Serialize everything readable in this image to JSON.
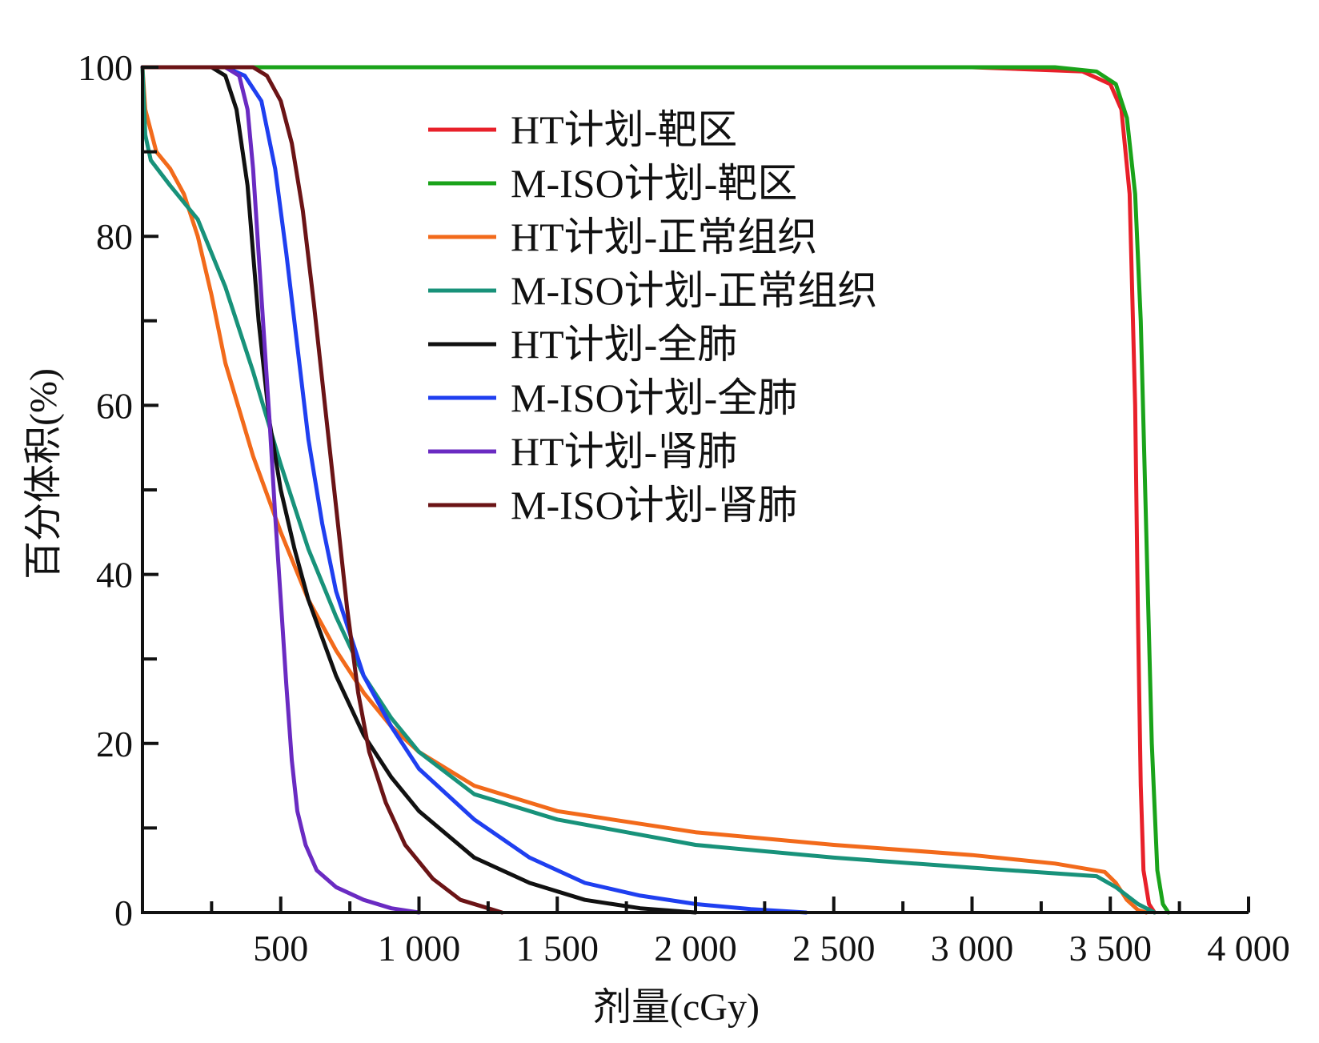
{
  "chart_data": {
    "type": "line",
    "title": "",
    "xlabel": "剂量(cGy)",
    "ylabel": "百分体积(%)",
    "xlim": [
      0,
      4000
    ],
    "ylim": [
      0,
      100
    ],
    "x_ticks": [
      500,
      1000,
      1500,
      2000,
      2500,
      3000,
      3500,
      4000
    ],
    "x_tick_labels": [
      "500",
      "1 000",
      "1 500",
      "2 000",
      "2 500",
      "3 000",
      "3 500",
      "4 000"
    ],
    "y_ticks": [
      0,
      20,
      40,
      60,
      80,
      100
    ],
    "y_tick_labels": [
      "0",
      "20",
      "40",
      "60",
      "80",
      "100"
    ],
    "grid": false,
    "legend_position": "top-center",
    "series": [
      {
        "name": "HT计划-靶区",
        "color": "#e8202a",
        "points": [
          [
            0,
            100
          ],
          [
            3000,
            100
          ],
          [
            3400,
            99.5
          ],
          [
            3500,
            98
          ],
          [
            3540,
            95
          ],
          [
            3570,
            85
          ],
          [
            3590,
            60
          ],
          [
            3600,
            35
          ],
          [
            3610,
            15
          ],
          [
            3620,
            5
          ],
          [
            3640,
            1
          ],
          [
            3660,
            0
          ]
        ]
      },
      {
        "name": "M-ISO计划-靶区",
        "color": "#1aa31a",
        "points": [
          [
            0,
            100
          ],
          [
            3300,
            100
          ],
          [
            3450,
            99.5
          ],
          [
            3520,
            98
          ],
          [
            3560,
            94
          ],
          [
            3590,
            85
          ],
          [
            3610,
            70
          ],
          [
            3630,
            45
          ],
          [
            3650,
            20
          ],
          [
            3670,
            5
          ],
          [
            3690,
            1
          ],
          [
            3710,
            0
          ]
        ]
      },
      {
        "name": "HT计划-正常组织",
        "color": "#f26a1b",
        "points": [
          [
            0,
            100
          ],
          [
            10,
            95
          ],
          [
            50,
            90
          ],
          [
            100,
            88
          ],
          [
            150,
            85
          ],
          [
            200,
            80
          ],
          [
            250,
            73
          ],
          [
            300,
            65
          ],
          [
            400,
            54
          ],
          [
            500,
            45
          ],
          [
            600,
            37
          ],
          [
            700,
            31
          ],
          [
            800,
            26
          ],
          [
            900,
            22
          ],
          [
            1000,
            19
          ],
          [
            1200,
            15
          ],
          [
            1500,
            12
          ],
          [
            2000,
            9.5
          ],
          [
            2500,
            8
          ],
          [
            3000,
            6.8
          ],
          [
            3300,
            5.8
          ],
          [
            3480,
            4.8
          ],
          [
            3520,
            3.5
          ],
          [
            3560,
            1.5
          ],
          [
            3600,
            0.3
          ],
          [
            3630,
            0
          ]
        ]
      },
      {
        "name": "M-ISO计划-正常组织",
        "color": "#18927a",
        "points": [
          [
            0,
            100
          ],
          [
            10,
            92
          ],
          [
            30,
            89
          ],
          [
            100,
            86
          ],
          [
            200,
            82
          ],
          [
            300,
            74
          ],
          [
            400,
            64
          ],
          [
            500,
            53
          ],
          [
            600,
            43
          ],
          [
            700,
            35
          ],
          [
            800,
            28
          ],
          [
            900,
            23
          ],
          [
            1000,
            19
          ],
          [
            1200,
            14
          ],
          [
            1500,
            11
          ],
          [
            2000,
            8
          ],
          [
            2500,
            6.5
          ],
          [
            3000,
            5.3
          ],
          [
            3450,
            4.3
          ],
          [
            3520,
            3
          ],
          [
            3600,
            1
          ],
          [
            3660,
            0
          ]
        ]
      },
      {
        "name": "HT计划-全肺",
        "color": "#111111",
        "points": [
          [
            0,
            100
          ],
          [
            250,
            100
          ],
          [
            300,
            99
          ],
          [
            340,
            95
          ],
          [
            380,
            86
          ],
          [
            420,
            70
          ],
          [
            460,
            58
          ],
          [
            500,
            50
          ],
          [
            550,
            43
          ],
          [
            600,
            37
          ],
          [
            700,
            28
          ],
          [
            800,
            21
          ],
          [
            900,
            16
          ],
          [
            1000,
            12
          ],
          [
            1200,
            6.5
          ],
          [
            1400,
            3.5
          ],
          [
            1600,
            1.5
          ],
          [
            1800,
            0.5
          ],
          [
            2000,
            0
          ]
        ]
      },
      {
        "name": "M-ISO计划-全肺",
        "color": "#1f3ff0",
        "points": [
          [
            0,
            100
          ],
          [
            300,
            100
          ],
          [
            370,
            99
          ],
          [
            430,
            96
          ],
          [
            480,
            88
          ],
          [
            520,
            78
          ],
          [
            560,
            67
          ],
          [
            600,
            56
          ],
          [
            650,
            46
          ],
          [
            700,
            38
          ],
          [
            800,
            28
          ],
          [
            900,
            22
          ],
          [
            1000,
            17
          ],
          [
            1200,
            11
          ],
          [
            1400,
            6.5
          ],
          [
            1600,
            3.5
          ],
          [
            1800,
            2
          ],
          [
            2000,
            1
          ],
          [
            2200,
            0.4
          ],
          [
            2400,
            0
          ]
        ]
      },
      {
        "name": "HT计划-肾肺",
        "color": "#6a2bc2",
        "points": [
          [
            0,
            100
          ],
          [
            300,
            100
          ],
          [
            350,
            99
          ],
          [
            380,
            95
          ],
          [
            400,
            88
          ],
          [
            420,
            78
          ],
          [
            440,
            68
          ],
          [
            460,
            58
          ],
          [
            480,
            47
          ],
          [
            500,
            37
          ],
          [
            520,
            27
          ],
          [
            540,
            18
          ],
          [
            560,
            12
          ],
          [
            590,
            8
          ],
          [
            630,
            5
          ],
          [
            700,
            3
          ],
          [
            800,
            1.5
          ],
          [
            900,
            0.5
          ],
          [
            1000,
            0
          ]
        ]
      },
      {
        "name": "M-ISO计划-肾肺",
        "color": "#6b1416",
        "points": [
          [
            0,
            100
          ],
          [
            400,
            100
          ],
          [
            450,
            99
          ],
          [
            500,
            96
          ],
          [
            540,
            91
          ],
          [
            580,
            83
          ],
          [
            620,
            72
          ],
          [
            660,
            60
          ],
          [
            700,
            48
          ],
          [
            740,
            36
          ],
          [
            780,
            26
          ],
          [
            820,
            19
          ],
          [
            880,
            13
          ],
          [
            950,
            8
          ],
          [
            1050,
            4
          ],
          [
            1150,
            1.5
          ],
          [
            1250,
            0.5
          ],
          [
            1300,
            0
          ]
        ]
      }
    ]
  }
}
